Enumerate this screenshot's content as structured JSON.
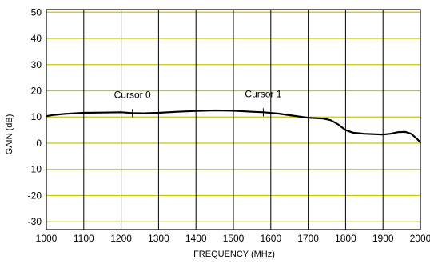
{
  "chart_data": {
    "type": "line",
    "xlabel": "FREQUENCY (MHz)",
    "ylabel": "GAIN (dB)",
    "xlim": [
      1000,
      2000
    ],
    "ylim": [
      -33,
      51
    ],
    "x_ticks": [
      1000,
      1100,
      1200,
      1300,
      1400,
      1500,
      1600,
      1700,
      1800,
      1900,
      2000
    ],
    "y_ticks": [
      -30,
      -20,
      -10,
      0,
      10,
      20,
      30,
      40,
      50
    ],
    "x_tick_labels": [
      "1000",
      "1100",
      "1200",
      "1300",
      "1400",
      "1500",
      "1600",
      "1700",
      "1800",
      "1900",
      "2000"
    ],
    "y_tick_labels": [
      "-30",
      "-20",
      "-10",
      "0",
      "10",
      "20",
      "30",
      "40",
      "50"
    ],
    "grid": true,
    "colors": {
      "plot_background": "#ffffff",
      "horizontal_grid": "#c8c800",
      "vertical_grid": "#000000",
      "trace": "#000000",
      "frame": "#000000"
    },
    "series": [
      {
        "x": [
          1000,
          1020,
          1050,
          1100,
          1150,
          1200,
          1230,
          1260,
          1300,
          1350,
          1400,
          1450,
          1500,
          1550,
          1580,
          1620,
          1660,
          1700,
          1740,
          1760,
          1780,
          1800,
          1820,
          1850,
          1880,
          1900,
          1920,
          1940,
          1960,
          1975,
          1990,
          2000
        ],
        "y": [
          10.3,
          10.8,
          11.2,
          11.6,
          11.7,
          11.8,
          11.5,
          11.4,
          11.6,
          12.0,
          12.3,
          12.5,
          12.4,
          12.0,
          11.8,
          11.3,
          10.5,
          9.7,
          9.4,
          8.8,
          7.2,
          5.0,
          4.0,
          3.6,
          3.4,
          3.3,
          3.6,
          4.2,
          4.3,
          3.6,
          1.8,
          0.3
        ]
      }
    ],
    "cursors": [
      {
        "label": "Cursor 0",
        "x": 1230,
        "y": 11.5
      },
      {
        "label": "Cursor 1",
        "x": 1580,
        "y": 11.8
      }
    ]
  }
}
